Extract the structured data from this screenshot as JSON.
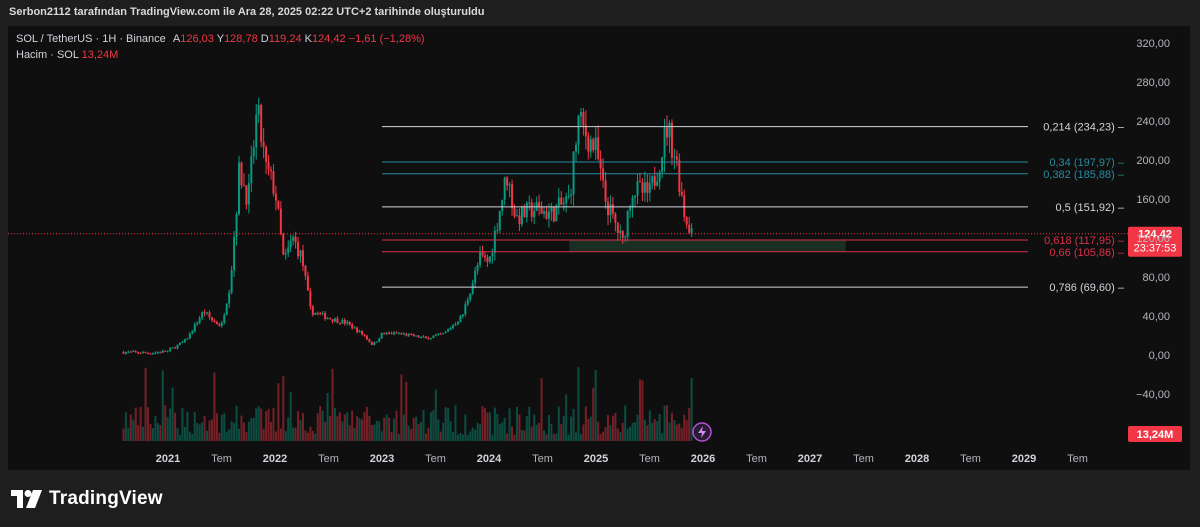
{
  "header": {
    "text": "Serbon2112 tarafından TradingView.com ile Ara 28, 2025 02:22 UTC+2 tarihinde oluşturuldu"
  },
  "legend": {
    "symbol": "SOL / TetherUS · 1H · Binance",
    "open_label": "A",
    "open": "126,03",
    "high_label": "Y",
    "high": "128,78",
    "low_label": "D",
    "low": "119,24",
    "close_label": "K",
    "close": "124,42",
    "change": "−1,61 (−1,28%)",
    "volume_label": "Hacim · SOL",
    "volume": "13,24M"
  },
  "footer": {
    "logo_text": "TradingView"
  },
  "colors": {
    "background": "#0f0f0f",
    "up": "#089981",
    "down": "#f23645",
    "fib_white": "#d1d4dc",
    "fib_teal": "#2a8a9e",
    "fib_red": "#d9304a",
    "zone": "#1f3a2c"
  },
  "chart_data": {
    "type": "candlestick",
    "y_axis": {
      "min": -60,
      "max": 330,
      "ticks": [
        "320,00",
        "280,00",
        "240,00",
        "200,00",
        "160,00",
        "120,00",
        "80,00",
        "40,00",
        "0,00",
        "−40,00"
      ],
      "tick_values": [
        320,
        280,
        240,
        200,
        160,
        120,
        80,
        40,
        0,
        -40
      ]
    },
    "x_axis": {
      "ticks": [
        "2021",
        "Tem",
        "2022",
        "Tem",
        "2023",
        "Tem",
        "2024",
        "Tem",
        "2025",
        "Tem",
        "2026",
        "Tem",
        "2027",
        "Tem",
        "2028",
        "Tem",
        "2029",
        "Tem"
      ],
      "tick_dates": [
        "2021-01",
        "2021-07",
        "2022-01",
        "2022-07",
        "2023-01",
        "2023-07",
        "2024-01",
        "2024-07",
        "2025-01",
        "2025-07",
        "2026-01",
        "2026-07",
        "2027-01",
        "2027-07",
        "2028-01",
        "2028-07",
        "2029-01",
        "2029-07"
      ]
    },
    "price_path": [
      {
        "date": "2020-08",
        "price": 3
      },
      {
        "date": "2020-11",
        "price": 2
      },
      {
        "date": "2021-01",
        "price": 4
      },
      {
        "date": "2021-03",
        "price": 15
      },
      {
        "date": "2021-05",
        "price": 45
      },
      {
        "date": "2021-06",
        "price": 35
      },
      {
        "date": "2021-07",
        "price": 30
      },
      {
        "date": "2021-08",
        "price": 75
      },
      {
        "date": "2021-09",
        "price": 190
      },
      {
        "date": "2021-10",
        "price": 160
      },
      {
        "date": "2021-11",
        "price": 250
      },
      {
        "date": "2021-12",
        "price": 190
      },
      {
        "date": "2022-01",
        "price": 170
      },
      {
        "date": "2022-02",
        "price": 95
      },
      {
        "date": "2022-03",
        "price": 120
      },
      {
        "date": "2022-04",
        "price": 100
      },
      {
        "date": "2022-05",
        "price": 45
      },
      {
        "date": "2022-07",
        "price": 38
      },
      {
        "date": "2022-09",
        "price": 33
      },
      {
        "date": "2022-11",
        "price": 20
      },
      {
        "date": "2022-12",
        "price": 10
      },
      {
        "date": "2023-01",
        "price": 22
      },
      {
        "date": "2023-03",
        "price": 22
      },
      {
        "date": "2023-06",
        "price": 17
      },
      {
        "date": "2023-08",
        "price": 22
      },
      {
        "date": "2023-10",
        "price": 40
      },
      {
        "date": "2023-12",
        "price": 100
      },
      {
        "date": "2024-01",
        "price": 95
      },
      {
        "date": "2024-03",
        "price": 185
      },
      {
        "date": "2024-04",
        "price": 140
      },
      {
        "date": "2024-06",
        "price": 150
      },
      {
        "date": "2024-08",
        "price": 145
      },
      {
        "date": "2024-10",
        "price": 160
      },
      {
        "date": "2024-11",
        "price": 240
      },
      {
        "date": "2025-01",
        "price": 210
      },
      {
        "date": "2025-02",
        "price": 160
      },
      {
        "date": "2025-04",
        "price": 115
      },
      {
        "date": "2025-05",
        "price": 170
      },
      {
        "date": "2025-07",
        "price": 165
      },
      {
        "date": "2025-08",
        "price": 195
      },
      {
        "date": "2025-09",
        "price": 235
      },
      {
        "date": "2025-10",
        "price": 200
      },
      {
        "date": "2025-11",
        "price": 140
      },
      {
        "date": "2025-12",
        "price": 124
      }
    ],
    "current_price": {
      "value": 124.42,
      "label": "124,42",
      "countdown": "23:37:53"
    },
    "volume_label": "13,24M",
    "fib_levels": [
      {
        "level": "0,214",
        "price": 234.23,
        "label": "0,214 (234,23)",
        "color": "#d1d4dc"
      },
      {
        "level": "0,34",
        "price": 197.97,
        "label": "0,34 (197,97)",
        "color": "#2a8a9e"
      },
      {
        "level": "0,382",
        "price": 185.88,
        "label": "0,382 (185,88)",
        "color": "#2a8a9e"
      },
      {
        "level": "0,5",
        "price": 151.92,
        "label": "0,5 (151,92)",
        "color": "#d1d4dc"
      },
      {
        "level": "0,618",
        "price": 117.95,
        "label": "0,618 (117,95)",
        "color": "#d9304a"
      },
      {
        "level": "0,66",
        "price": 105.86,
        "label": "0,66 (105,86)",
        "color": "#d9304a"
      },
      {
        "level": "0,786",
        "price": 69.6,
        "label": "0,786 (69,60)",
        "color": "#d1d4dc"
      }
    ],
    "fib_start_date": "2023-01",
    "zone": {
      "start": "2024-10",
      "end": "2027-05",
      "low": 105.86,
      "high": 117.95
    }
  }
}
